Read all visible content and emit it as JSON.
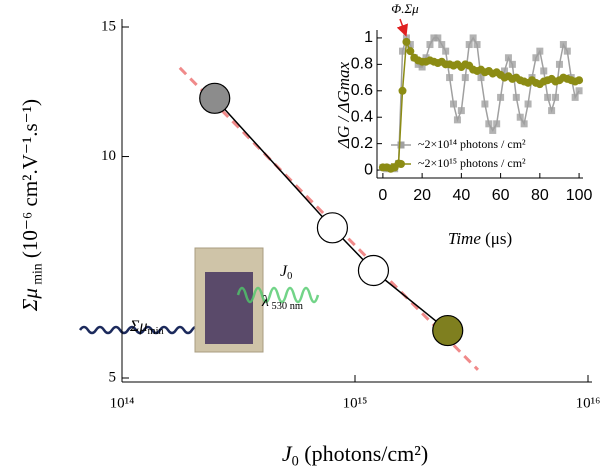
{
  "chart_data": [
    {
      "type": "scatter",
      "xlabel": {
        "main": "J",
        "sub": "0",
        "rest": " (photons/cm²)"
      },
      "ylabel": {
        "main": "Σμ",
        "sub": " min",
        "rest": " (10⁻⁶ cm².V⁻¹.s⁻¹)"
      },
      "x": [
        250000000000000.0,
        800000000000000.0,
        1200000000000000.0,
        2500000000000000.0
      ],
      "values": [
        12,
        8,
        7,
        5.8
      ],
      "colors": [
        "#8c8c8c",
        "#ffffff",
        "#ffffff",
        "#7f7f1f"
      ],
      "fit": {
        "x": [
          177000000000000.0,
          3370000000000000.0
        ],
        "values": [
          13.2,
          5.13
        ],
        "color": "#f08a8a"
      },
      "xscale": "log",
      "yscale": "log",
      "xlim": [
        100000000000000.0,
        1e+16
      ],
      "ylim": [
        5,
        15
      ],
      "xticks": [
        {
          "value": 100000000000000.0,
          "label": "10¹⁴"
        },
        {
          "value": 1000000000000000.0,
          "label": "10¹⁵"
        },
        {
          "value": 1e+16,
          "label": "10¹⁶"
        }
      ],
      "yticks": [
        5,
        10,
        15
      ],
      "illustration": {
        "probe": {
          "main": "Σμ",
          "sub": "min"
        },
        "pump": {
          "main": "J",
          "sub": "0"
        },
        "wavelength": {
          "main": "λ",
          "sub": " 530 nm"
        }
      }
    },
    {
      "type": "line",
      "xlabel": {
        "main": "Time",
        "rest": " (μs)"
      },
      "ylabel": "ΔG / ΔGmax",
      "annotation": "Φ.Σμ",
      "x": [
        0,
        2,
        4,
        6,
        8,
        10,
        12,
        14,
        16,
        18,
        20,
        22,
        24,
        26,
        28,
        30,
        32,
        34,
        36,
        38,
        40,
        42,
        44,
        46,
        48,
        50,
        52,
        54,
        56,
        58,
        60,
        62,
        64,
        66,
        68,
        70,
        72,
        74,
        76,
        78,
        80,
        82,
        84,
        86,
        88,
        90,
        92,
        94,
        96,
        98,
        100
      ],
      "series": [
        {
          "name": "~2×10¹⁴ photons / cm²",
          "color": "#a0a0a0",
          "values": [
            0.02,
            0.01,
            0.02,
            0.01,
            0.05,
            0.9,
            1.0,
            0.95,
            0.85,
            0.8,
            0.78,
            0.85,
            0.95,
            1.0,
            1.0,
            0.95,
            0.9,
            0.7,
            0.5,
            0.38,
            0.45,
            0.7,
            0.95,
            1.0,
            0.95,
            0.7,
            0.5,
            0.35,
            0.3,
            0.35,
            0.55,
            0.75,
            0.85,
            0.8,
            0.55,
            0.4,
            0.35,
            0.5,
            0.7,
            0.85,
            0.9,
            0.75,
            0.55,
            0.45,
            0.55,
            0.8,
            0.95,
            0.9,
            0.7,
            0.55,
            0.6
          ]
        },
        {
          "name": "~2×10¹⁵ photons / cm²",
          "color": "#8c8c14",
          "values": [
            0.02,
            0.02,
            0.01,
            0.02,
            0.05,
            0.6,
            0.97,
            0.9,
            0.85,
            0.83,
            0.82,
            0.82,
            0.83,
            0.82,
            0.81,
            0.82,
            0.8,
            0.8,
            0.79,
            0.8,
            0.78,
            0.8,
            0.79,
            0.76,
            0.75,
            0.76,
            0.74,
            0.75,
            0.73,
            0.74,
            0.72,
            0.7,
            0.71,
            0.69,
            0.7,
            0.68,
            0.67,
            0.66,
            0.68,
            0.66,
            0.65,
            0.67,
            0.68,
            0.69,
            0.67,
            0.68,
            0.7,
            0.69,
            0.68,
            0.67,
            0.68
          ]
        }
      ],
      "xlim": [
        -3,
        102
      ],
      "ylim": [
        -0.06,
        1.06
      ],
      "xticks": [
        0,
        20,
        40,
        60,
        80,
        100
      ],
      "yticks": [
        0,
        0.2,
        0.4,
        0.6,
        0.8,
        1
      ]
    }
  ]
}
